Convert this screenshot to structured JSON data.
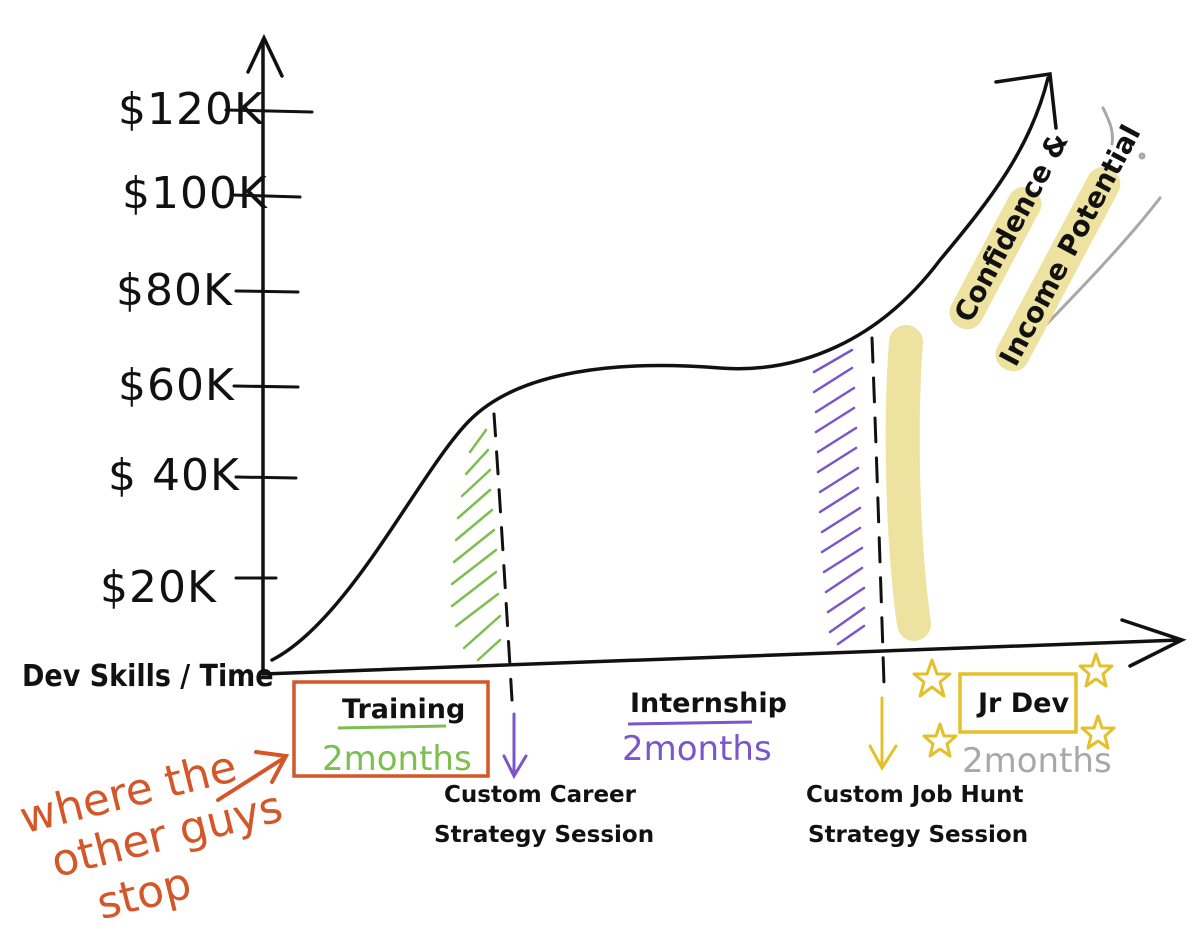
{
  "axes": {
    "x_label": "Dev Skills / Time",
    "y_ticks": [
      "$120K",
      "$100K",
      "$80K",
      "$60K",
      "$ 40K",
      "$20K"
    ]
  },
  "curve_label": {
    "line1": "Confidence &",
    "line2": "Income Potential"
  },
  "phases": [
    {
      "label": "Training",
      "duration": "2months",
      "color": "#7cbf4e",
      "box_color": "#d4572a"
    },
    {
      "label": "Internship",
      "duration": "2months",
      "color": "#7b55c9"
    },
    {
      "label": "Jr Dev",
      "duration": "2months",
      "color": "#e4c02a",
      "duration_color": "#9e9e9e"
    }
  ],
  "sessions": [
    {
      "line1": "Custom Career",
      "line2": "Strategy Session",
      "arrow_color": "#7b55c9"
    },
    {
      "line1": "Custom Job Hunt",
      "line2": "Strategy Session",
      "arrow_color": "#e4c02a"
    }
  ],
  "note": {
    "lines": [
      "where the",
      "other guys",
      "stop"
    ],
    "color": "#d4572a"
  },
  "colors": {
    "ink": "#111111",
    "highlight": "#ede2a0",
    "gray": "#a8a8a8"
  }
}
